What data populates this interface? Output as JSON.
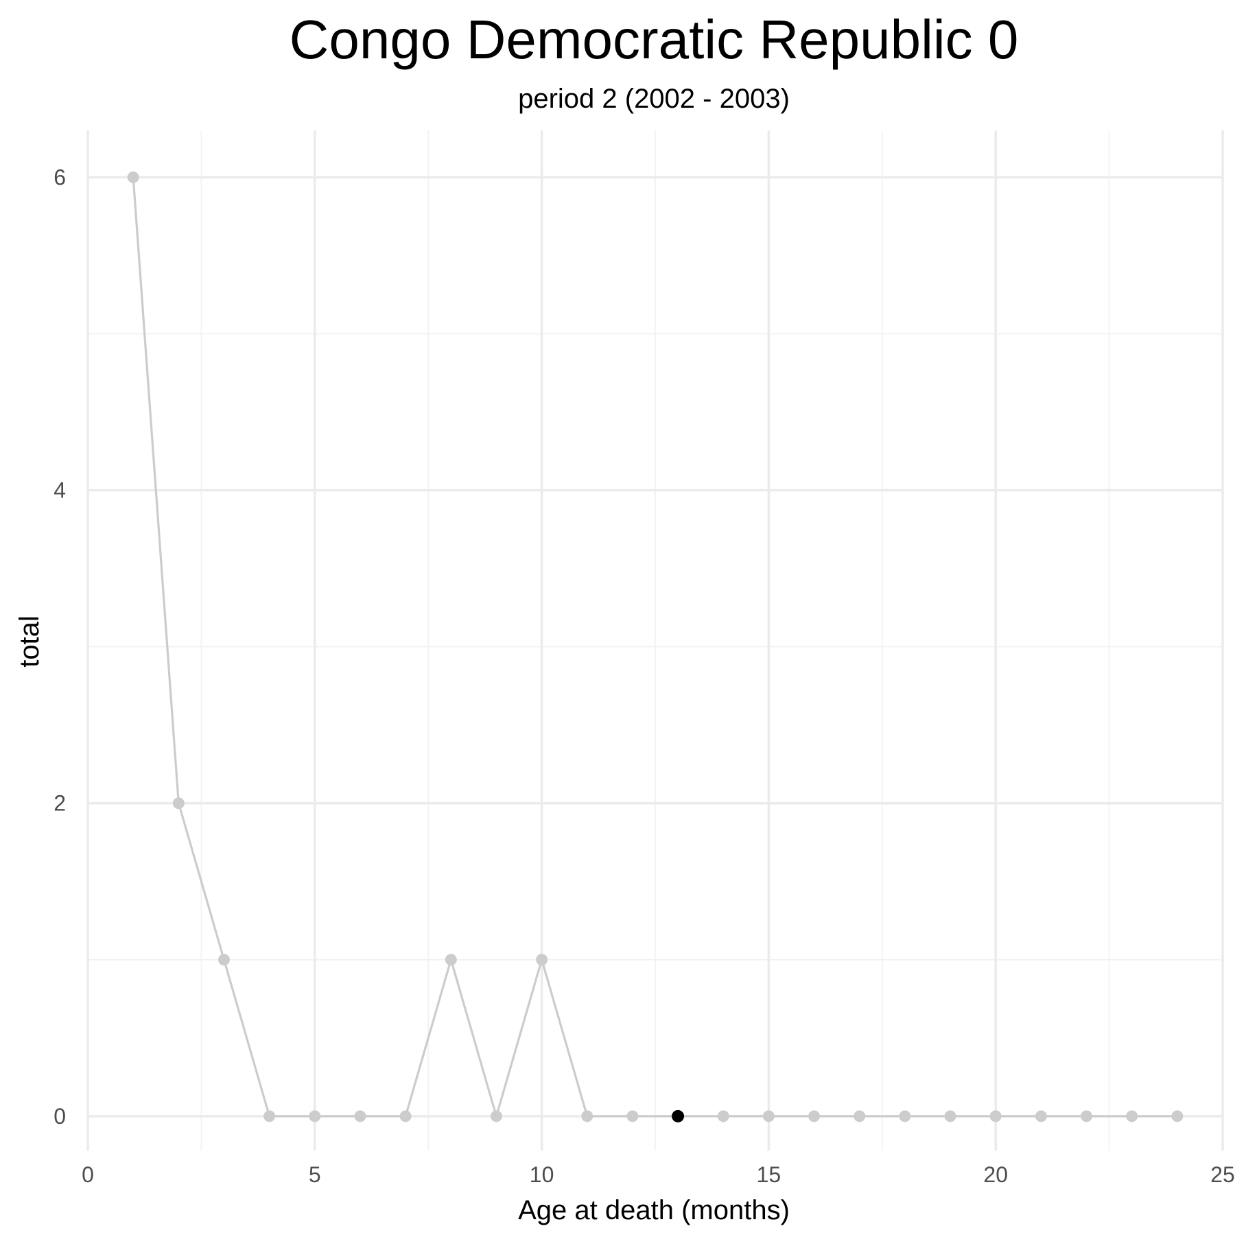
{
  "chart_data": {
    "type": "line",
    "title": "Congo Democratic Republic 0",
    "subtitle": "period 2 (2002 - 2003)",
    "xlabel": "Age at death (months)",
    "ylabel": "total",
    "xlim": [
      0,
      25
    ],
    "ylim": [
      -0.22,
      6.3
    ],
    "x_ticks": [
      0,
      5,
      10,
      15,
      20,
      25
    ],
    "x_tick_labels": [
      "0",
      "5",
      "10",
      "15",
      "20",
      "25"
    ],
    "y_ticks": [
      0,
      2,
      4,
      6
    ],
    "y_tick_labels": [
      "0",
      "2",
      "4",
      "6"
    ],
    "grid": true,
    "legend": "none",
    "series": [
      {
        "x": [
          1,
          2,
          3,
          4,
          5,
          6,
          7,
          8,
          9,
          10,
          11,
          12,
          13,
          14,
          15,
          16,
          17,
          18,
          19,
          20,
          21,
          22,
          23,
          24
        ],
        "values": [
          6,
          2,
          1,
          0,
          0,
          0,
          0,
          1,
          0,
          1,
          0,
          0,
          0,
          0,
          0,
          0,
          0,
          0,
          0,
          0,
          0,
          0,
          0,
          0
        ],
        "color": "#cccccc"
      }
    ],
    "highlight": {
      "x": 13,
      "value": 0,
      "color": "#000000"
    }
  }
}
